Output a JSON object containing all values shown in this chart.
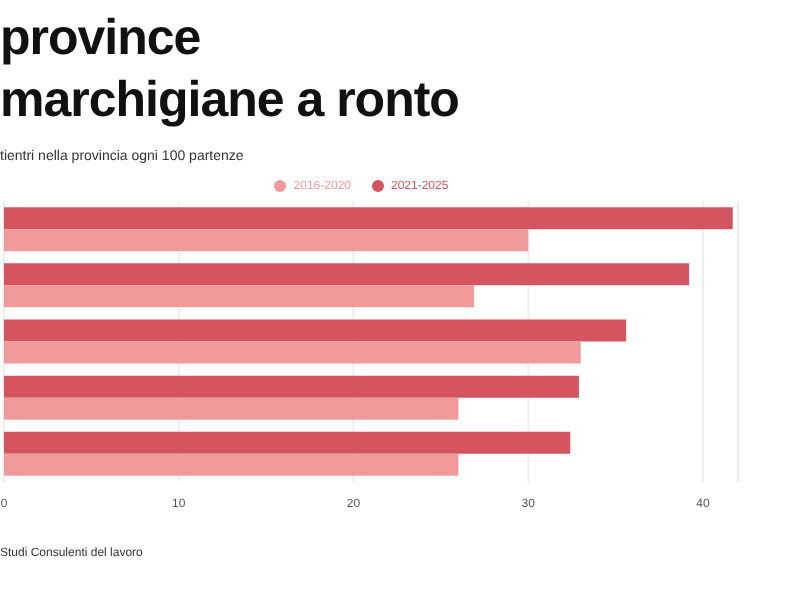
{
  "chart_data": {
    "type": "bar",
    "orientation": "horizontal",
    "title": "province marchigiane a ronto",
    "subtitle": "tientri nella provincia ogni 100 partenze",
    "categories": [
      null,
      null,
      null,
      null,
      null
    ],
    "series": [
      {
        "name": "2021-2025",
        "color": "#d4545f",
        "values": [
          41.7,
          39.2,
          35.6,
          32.9,
          32.4
        ]
      },
      {
        "name": "2016-2020",
        "color": "#f09a9c",
        "values": [
          30.0,
          26.9,
          33.0,
          26.0,
          26.0
        ]
      }
    ],
    "xlim": [
      0,
      42
    ],
    "xticks": [
      0,
      10,
      20,
      30,
      40
    ],
    "grid": "x",
    "legend": "top",
    "tick_labels": "x",
    "annotations": [
      "Studi Consulenti del lavoro"
    ]
  }
}
